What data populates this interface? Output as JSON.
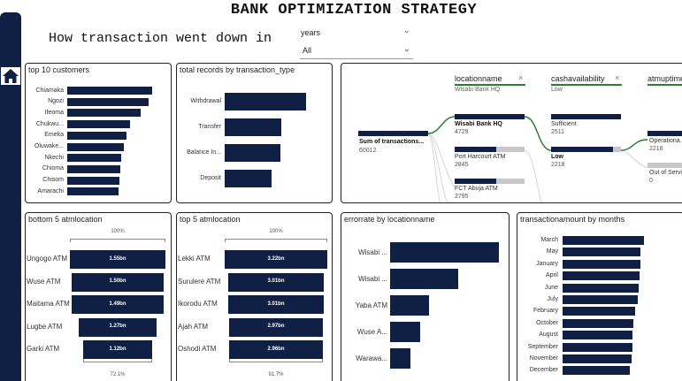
{
  "header": {
    "title": "BANK OPTIMIZATION STRATEGY",
    "subtitle": "How transaction went down in"
  },
  "slicer": {
    "label": "years",
    "value": "All"
  },
  "nav": {
    "icon": "home-icon"
  },
  "colors": {
    "bar": "#0f2044",
    "remainder": "#c8c8c8",
    "path": "#2e7d32"
  },
  "top_customers": {
    "title": "top 10 customers",
    "categories": [
      "Chiamaka",
      "Ngozi",
      "Ifeoma",
      "Chukwu...",
      "Emeka",
      "Oluwake...",
      "Nkechi",
      "Chioma",
      "Chisom",
      "Amarachi"
    ],
    "values": [
      100,
      96,
      86,
      74,
      70,
      67,
      64,
      62,
      61,
      60
    ]
  },
  "records_by_type": {
    "title": "total records by transaction_type",
    "categories": [
      "Withdrawal",
      "Transfer",
      "Balance In...",
      "Deposit"
    ],
    "values": [
      100,
      70,
      68,
      58
    ]
  },
  "decomposition_tree": {
    "root": {
      "label": "Sum of transactions...",
      "value": "60012"
    },
    "levels": [
      {
        "header": "locationname",
        "filter": "Wisabi Bank HQ"
      },
      {
        "header": "cashavailability",
        "filter": "Low"
      },
      {
        "header": "atmuptime",
        "filter": ""
      }
    ],
    "location_nodes": [
      {
        "label": "Wisabi Bank HQ",
        "value": "4729",
        "fill": 1.0,
        "selected": true
      },
      {
        "label": "Port Harcourt ATM",
        "value": "2845",
        "fill": 0.6,
        "selected": false
      },
      {
        "label": "FCT Abuja ATM",
        "value": "2795",
        "fill": 0.59,
        "selected": false
      }
    ],
    "cash_nodes": [
      {
        "label": "Sufficient",
        "value": "2511",
        "fill": 1.0,
        "selected": false
      },
      {
        "label": "Low",
        "value": "2218",
        "fill": 0.88,
        "selected": true
      }
    ],
    "uptime_nodes": [
      {
        "label": "Operationa...",
        "value": "2218"
      },
      {
        "label": "Out of Servi...",
        "value": "0"
      }
    ]
  },
  "bottom_atm": {
    "title": "bottom 5 atmlocation",
    "top_pct": "100%",
    "bottom_pct": "72.1%",
    "categories": [
      "Ungogo ATM",
      "Wuse ATM",
      "Maitama ATM",
      "Lugbe ATM",
      "Garki ATM"
    ],
    "values": [
      1.55,
      1.5,
      1.49,
      1.27,
      1.12
    ],
    "labels": [
      "1.55bn",
      "1.50bn",
      "1.49bn",
      "1.27bn",
      "1.12bn"
    ]
  },
  "top_atm": {
    "title": "top 5 atmlocation",
    "top_pct": "100%",
    "bottom_pct": "91.7%",
    "categories": [
      "Lekki ATM",
      "Surulere ATM",
      "Ikorodu ATM",
      "Ajah ATM",
      "Oshodi ATM"
    ],
    "values": [
      3.22,
      3.01,
      3.01,
      2.97,
      2.96
    ],
    "labels": [
      "3.22bn",
      "3.01bn",
      "3.01bn",
      "2.97bn",
      "2.96bn"
    ]
  },
  "error_rate": {
    "title": "errorrate by locationname",
    "categories": [
      "Wisabi ...",
      "Wisabi ...",
      "Yaba ATM",
      "Wuse A...",
      "Warawa..."
    ],
    "values": [
      100,
      63,
      36,
      28,
      19
    ]
  },
  "amount_by_months": {
    "title": "transactionamount by months",
    "categories": [
      "March",
      "May",
      "January",
      "April",
      "June",
      "July",
      "February",
      "October",
      "August",
      "September",
      "November",
      "December"
    ],
    "values": [
      100,
      96,
      96,
      95,
      94,
      92,
      89,
      87,
      86,
      86,
      85,
      83
    ]
  }
}
